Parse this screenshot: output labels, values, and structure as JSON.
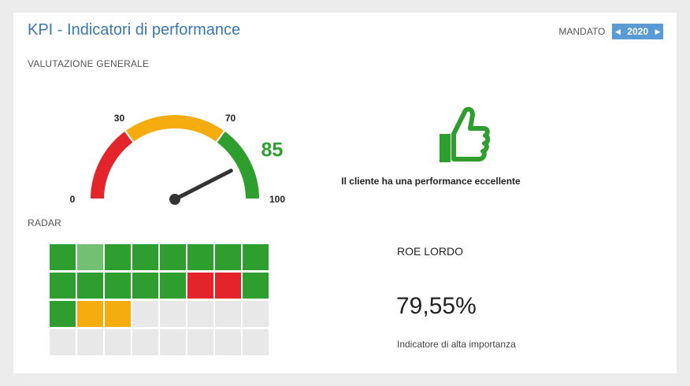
{
  "header": {
    "title": "KPI - Indicatori di performance",
    "mandate_label": "MANDATO",
    "year": "2020",
    "prev_arrow": "◀",
    "next_arrow": "▶"
  },
  "evaluation": {
    "section_label": "VALUTAZIONE GENERALE",
    "score": "85",
    "score_value": 85,
    "range": [
      0,
      100
    ],
    "ticks": [
      "0",
      "30",
      "70",
      "100"
    ],
    "bands": [
      {
        "from": 0,
        "to": 30,
        "color": "#e3242b"
      },
      {
        "from": 30,
        "to": 70,
        "color": "#f5ac0e"
      },
      {
        "from": 70,
        "to": 100,
        "color": "#2e9e2e"
      }
    ],
    "score_color": "#2e9e2e",
    "verdict_icon": "thumbs-up-icon",
    "verdict_text": "Il cliente ha una performance eccellente"
  },
  "radar": {
    "section_label": "RADAR",
    "colors": {
      "green": "#2e9e2e",
      "light_green": "#72c072",
      "red": "#e3242b",
      "yellow": "#f5ac0e",
      "empty": "#e8e8e8"
    },
    "rows": [
      [
        "green",
        "light_green",
        "green",
        "green",
        "green",
        "green",
        "green",
        "green"
      ],
      [
        "green",
        "green",
        "green",
        "green",
        "green",
        "red",
        "red",
        "green"
      ],
      [
        "green",
        "yellow",
        "yellow",
        "empty",
        "empty",
        "empty",
        "empty",
        "empty"
      ],
      [
        "empty",
        "empty",
        "empty",
        "empty",
        "empty",
        "empty",
        "empty",
        "empty"
      ]
    ]
  },
  "kpi": {
    "name": "ROE LORDO",
    "value": "79,55%",
    "description": "Indicatore di alta importanza"
  }
}
